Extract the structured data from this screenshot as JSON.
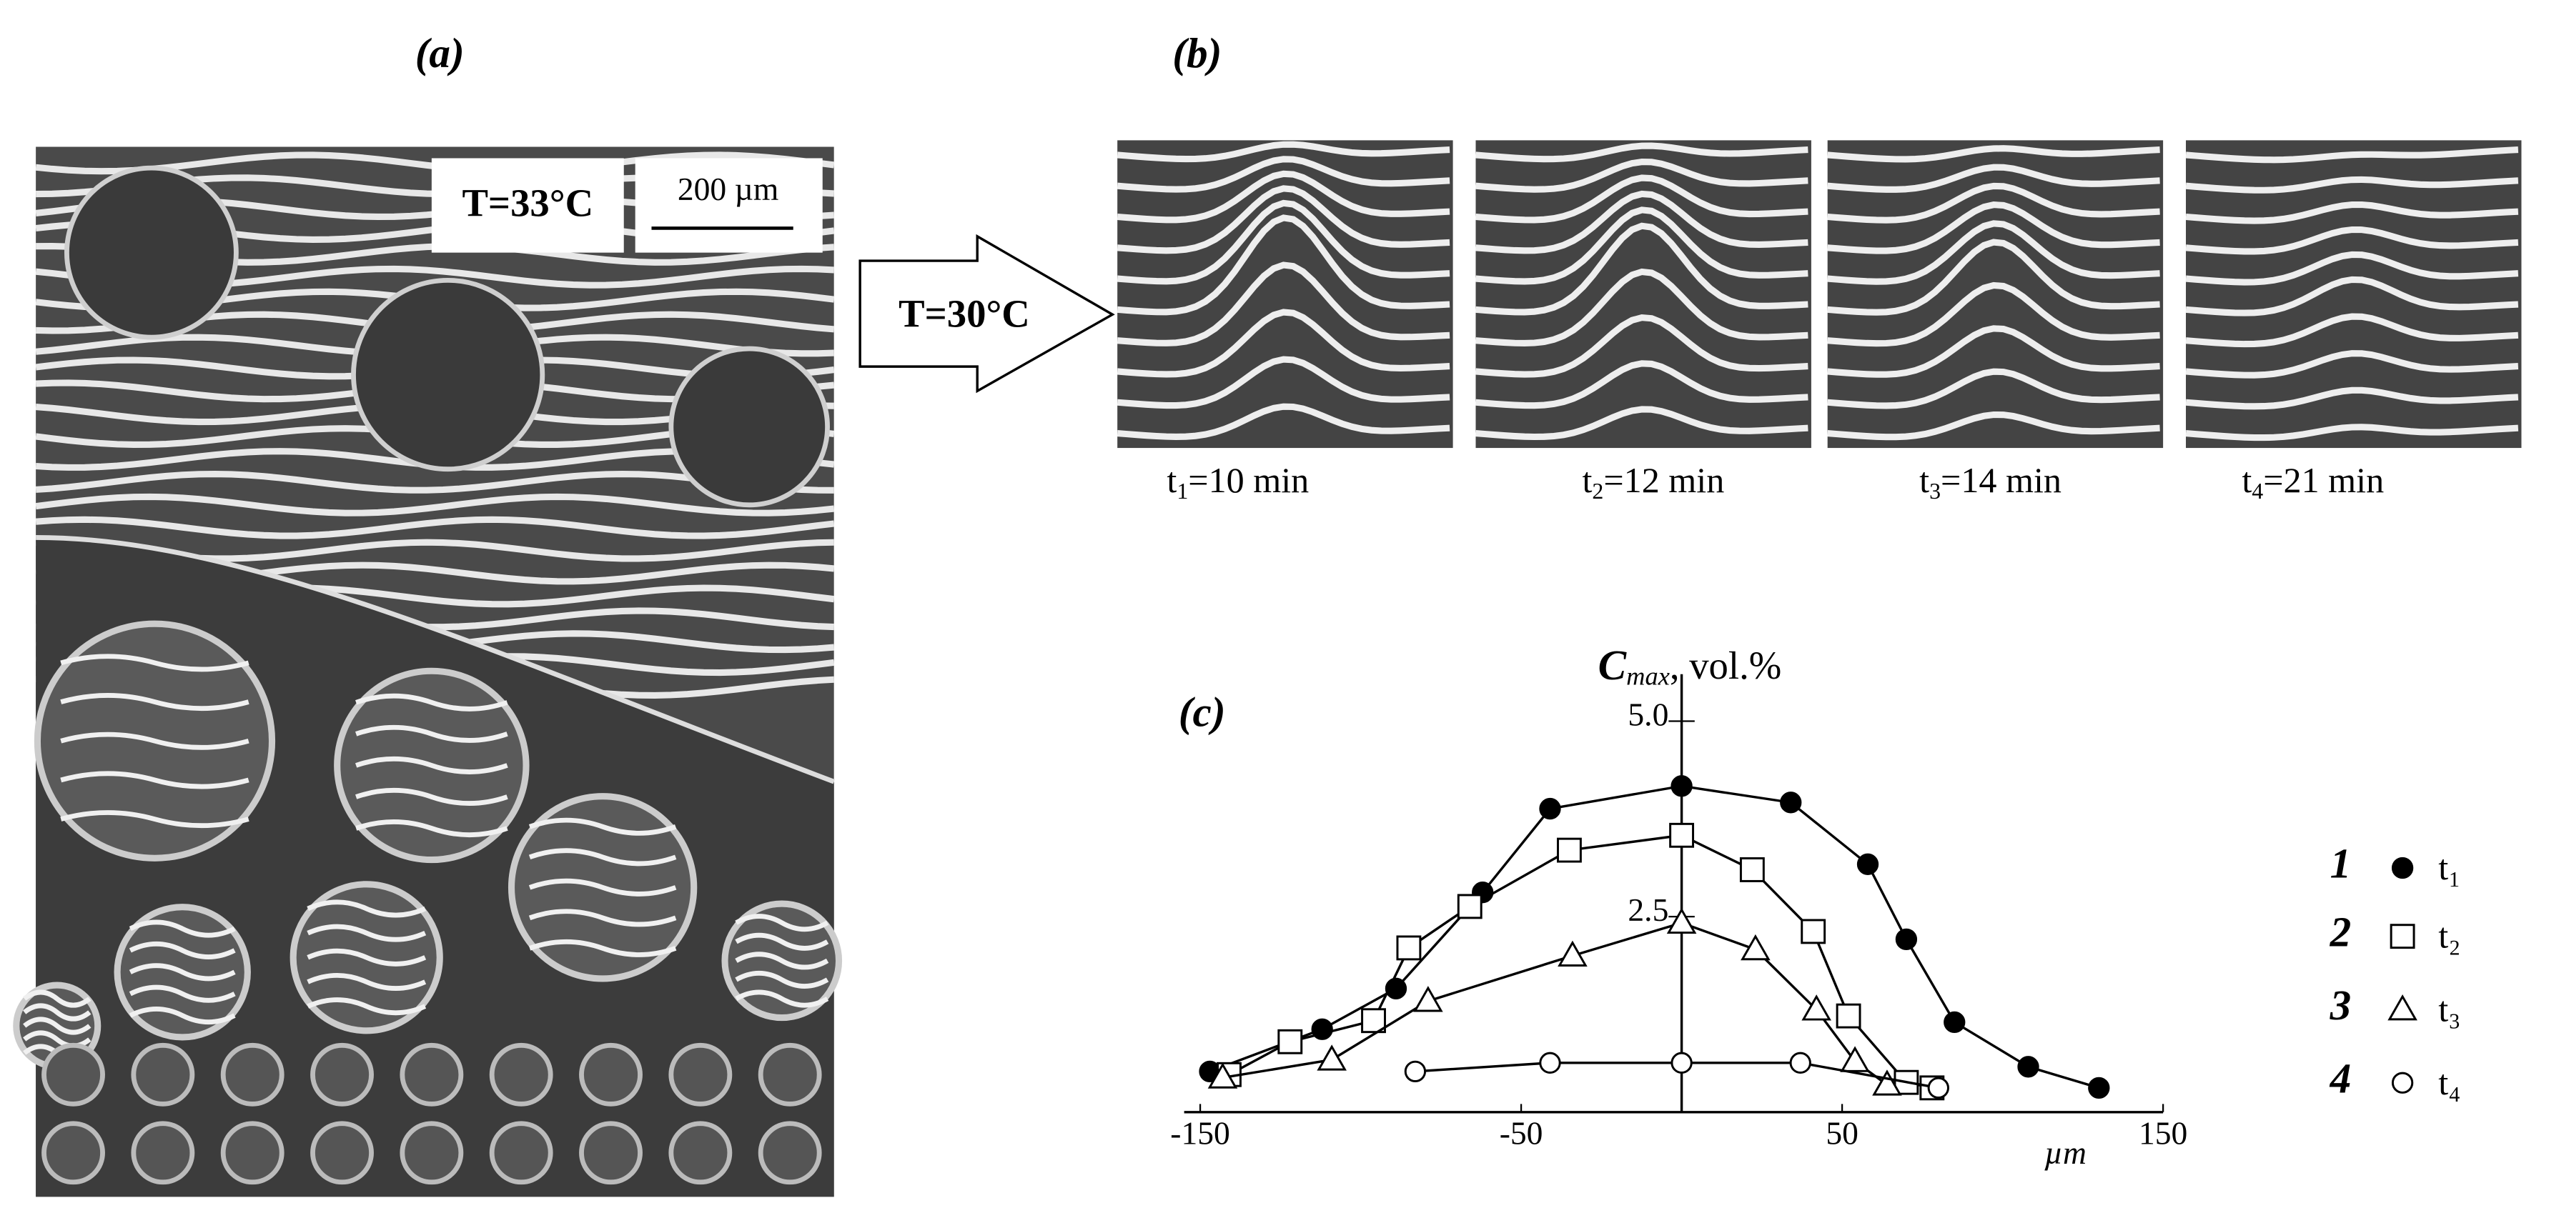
{
  "panel_a": {
    "label": "(a)",
    "temperature": "T=33°C",
    "scale_bar": "200 µm"
  },
  "arrow": {
    "text": "T=30°C"
  },
  "panel_b": {
    "label": "(b)",
    "captions": [
      {
        "t": "t",
        "sub": "1",
        "rest": "=10 min"
      },
      {
        "t": "t",
        "sub": "2",
        "rest": "=12 min"
      },
      {
        "t": "t",
        "sub": "3",
        "rest": "=14 min"
      },
      {
        "t": "t",
        "sub": "4",
        "rest": "=21 min"
      }
    ]
  },
  "chart_data": {
    "type": "line",
    "panel_label": "(c)",
    "y_label": {
      "symbol": "C",
      "subscript": "max",
      "rest": ", vol.%"
    },
    "x_label": "µm",
    "xlim": [
      -155,
      150
    ],
    "xticks": [
      -150,
      -50,
      50,
      150
    ],
    "ylim": [
      0,
      5.6
    ],
    "yticks": [
      2.5,
      {
        "value": 5,
        "label": "5.0"
      }
    ],
    "series": [
      {
        "name": "t₁",
        "number": "1",
        "marker": "filled-circle",
        "x": [
          -147,
          -112,
          -89,
          -62,
          -41,
          0,
          34,
          58,
          70,
          85,
          108,
          130
        ],
        "values": [
          0.52,
          1.06,
          1.58,
          2.81,
          3.88,
          4.17,
          3.96,
          3.17,
          2.21,
          1.15,
          0.58,
          0.31
        ]
      },
      {
        "name": "t₂",
        "number": "2",
        "marker": "open-square",
        "x": [
          -141,
          -122,
          -96,
          -85,
          -66,
          -35,
          0,
          22,
          41,
          52,
          70,
          78
        ],
        "values": [
          0.48,
          0.9,
          1.17,
          2.1,
          2.63,
          3.35,
          3.54,
          3.1,
          2.31,
          1.23,
          0.38,
          0.31
        ]
      },
      {
        "name": "t₃",
        "number": "3",
        "marker": "open-triangle",
        "x": [
          -143,
          -109,
          -79,
          -34,
          0,
          23,
          42,
          54,
          64
        ],
        "values": [
          0.44,
          0.67,
          1.42,
          2.0,
          2.42,
          2.08,
          1.31,
          0.65,
          0.35
        ]
      },
      {
        "name": "t₄",
        "number": "4",
        "marker": "open-circle",
        "x": [
          -83,
          -41,
          0,
          37,
          80
        ],
        "values": [
          0.52,
          0.63,
          0.63,
          0.63,
          0.31
        ]
      }
    ]
  }
}
